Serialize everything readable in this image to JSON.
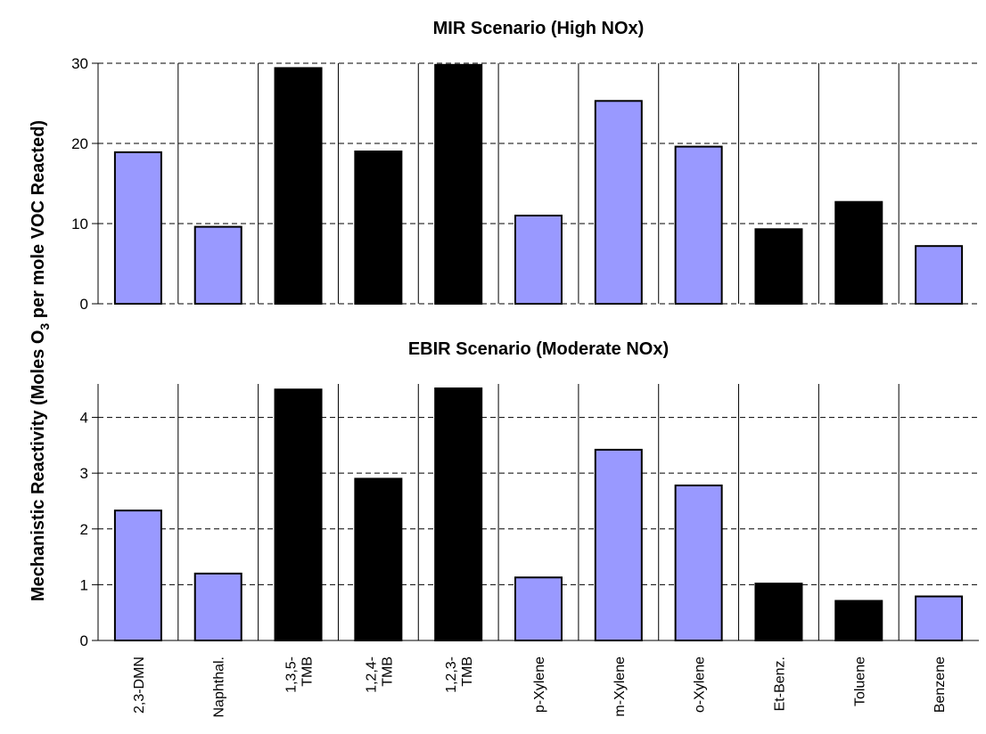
{
  "ylabel_main": "Mechanistic Reactivity (Moles O",
  "ylabel_sub": "3",
  "ylabel_tail": " per mole VOC Reacted)",
  "categories": [
    "2,3-DMN",
    "Naphthal.",
    "1,3,5-TMB",
    "1,2,4-TMB",
    "1,2,3-TMB",
    "p-Xylene",
    "m-Xylene",
    "o-Xylene",
    "Et-Benz.",
    "Toluene",
    "Benzene"
  ],
  "category_lines": [
    [
      "2,3-DMN"
    ],
    [
      "Naphthal."
    ],
    [
      "1,3,5-",
      "TMB"
    ],
    [
      "1,2,4-",
      "TMB"
    ],
    [
      "1,2,3-",
      "TMB"
    ],
    [
      "p-Xylene"
    ],
    [
      "m-Xylene"
    ],
    [
      "o-Xylene"
    ],
    [
      "Et-Benz."
    ],
    [
      "Toluene"
    ],
    [
      "Benzene"
    ]
  ],
  "colors": {
    "light": "#9999ff",
    "dark": "#000000"
  },
  "bar_color_keys": [
    "light",
    "light",
    "dark",
    "dark",
    "dark",
    "light",
    "light",
    "light",
    "dark",
    "dark",
    "light"
  ],
  "chart_data": [
    {
      "type": "bar",
      "title": "MIR Scenario (High NOx)",
      "categories": [
        "2,3-DMN",
        "Naphthal.",
        "1,3,5-TMB",
        "1,2,4-TMB",
        "1,2,3-TMB",
        "p-Xylene",
        "m-Xylene",
        "o-Xylene",
        "Et-Benz.",
        "Toluene",
        "Benzene"
      ],
      "values": [
        18.9,
        9.6,
        29.4,
        19.0,
        29.8,
        11.0,
        25.3,
        19.6,
        9.3,
        12.7,
        7.2
      ],
      "ylim": [
        0,
        30
      ],
      "yticks": [
        0,
        10,
        20,
        30
      ],
      "grid": "horizontal dashed"
    },
    {
      "type": "bar",
      "title": "EBIR Scenario (Moderate NOx)",
      "categories": [
        "2,3-DMN",
        "Naphthal.",
        "1,3,5-TMB",
        "1,2,4-TMB",
        "1,2,3-TMB",
        "p-Xylene",
        "m-Xylene",
        "o-Xylene",
        "Et-Benz.",
        "Toluene",
        "Benzene"
      ],
      "values": [
        2.33,
        1.2,
        4.5,
        2.9,
        4.52,
        1.13,
        3.42,
        2.78,
        1.02,
        0.71,
        0.79
      ],
      "ylim": [
        0,
        4.6
      ],
      "yticks": [
        0,
        1,
        2,
        3,
        4
      ],
      "grid": "horizontal dashed"
    }
  ]
}
